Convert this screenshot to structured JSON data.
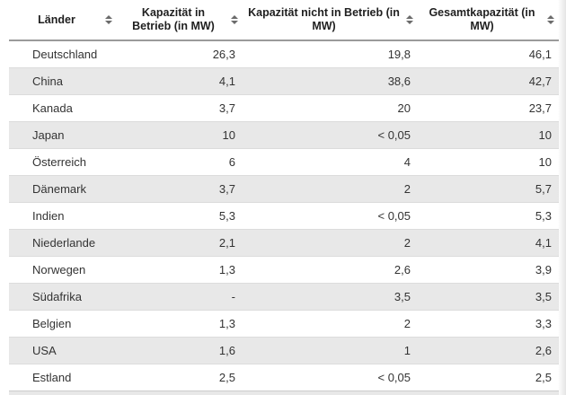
{
  "chart_data": {
    "type": "table",
    "columns": [
      "Länder",
      "Kapazität in Betrieb (in MW)",
      "Kapazität nicht in Betrieb (in MW)",
      "Gesamtkapazität (in MW)"
    ],
    "rows": [
      [
        "Deutschland",
        "26,3",
        "19,8",
        "46,1"
      ],
      [
        "China",
        "4,1",
        "38,6",
        "42,7"
      ],
      [
        "Kanada",
        "3,7",
        "20",
        "23,7"
      ],
      [
        "Japan",
        "10",
        "< 0,05",
        "10"
      ],
      [
        "Österreich",
        "6",
        "4",
        "10"
      ],
      [
        "Dänemark",
        "3,7",
        "2",
        "5,7"
      ],
      [
        "Indien",
        "5,3",
        "< 0,05",
        "5,3"
      ],
      [
        "Niederlande",
        "2,1",
        "2",
        "4,1"
      ],
      [
        "Norwegen",
        "1,3",
        "2,6",
        "3,9"
      ],
      [
        "Südafrika",
        "-",
        "3,5",
        "3,5"
      ],
      [
        "Belgien",
        "1,3",
        "2",
        "3,3"
      ],
      [
        "USA",
        "1,6",
        "1",
        "2,6"
      ],
      [
        "Estland",
        "2,5",
        "< 0,05",
        "2,5"
      ]
    ],
    "sortable_columns": true,
    "layout": {
      "zebra_striping": true,
      "numeric_alignment": "right",
      "header_alignment": "center"
    }
  },
  "icons": {
    "sort": {
      "name": "sort-arrows-icon",
      "glyph_up": "▲",
      "glyph_down": "▼"
    }
  },
  "colors": {
    "row_stripe": "#e8e8e8",
    "header_rule": "#9a9a9a",
    "row_divider": "#dcdcdc",
    "header_text": "#1f1f1f",
    "body_text": "#333333",
    "sort_icon": "#6b6b6b",
    "background": "#ffffff"
  }
}
